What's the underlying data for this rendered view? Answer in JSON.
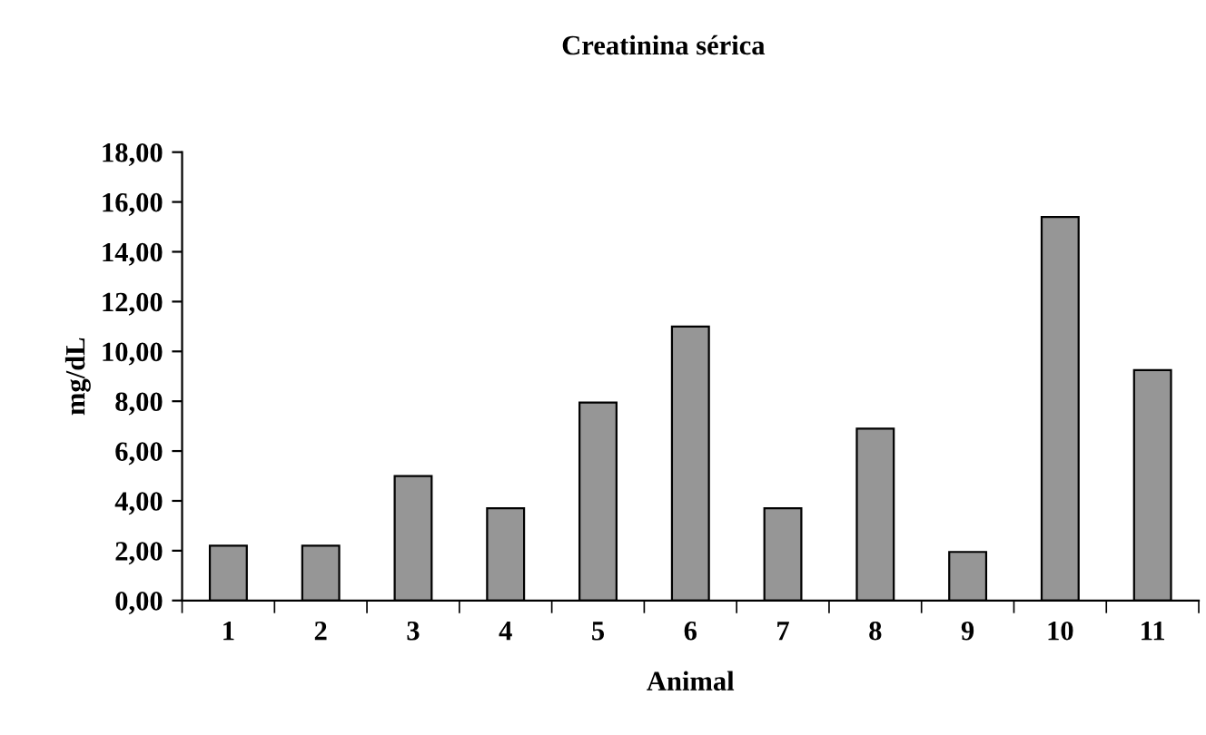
{
  "chart_data": {
    "type": "bar",
    "title": "Creatinina sérica",
    "xlabel": "Animal",
    "ylabel": "mg/dL",
    "categories": [
      "1",
      "2",
      "3",
      "4",
      "5",
      "6",
      "7",
      "8",
      "9",
      "10",
      "11"
    ],
    "values": [
      2.2,
      2.2,
      5.0,
      3.7,
      7.95,
      11.0,
      3.7,
      6.9,
      1.95,
      15.4,
      9.25
    ],
    "color": "#969696",
    "ylim": [
      0,
      18
    ],
    "yticks": [
      {
        "value": 0,
        "label": "0,00"
      },
      {
        "value": 2,
        "label": "2,00"
      },
      {
        "value": 4,
        "label": "4,00"
      },
      {
        "value": 6,
        "label": "6,00"
      },
      {
        "value": 8,
        "label": "8,00"
      },
      {
        "value": 10,
        "label": "10,00"
      },
      {
        "value": 12,
        "label": "12,00"
      },
      {
        "value": 14,
        "label": "14,00"
      },
      {
        "value": 16,
        "label": "16,00"
      },
      {
        "value": 18,
        "label": "18,00"
      }
    ],
    "grid": false,
    "legend": false
  }
}
